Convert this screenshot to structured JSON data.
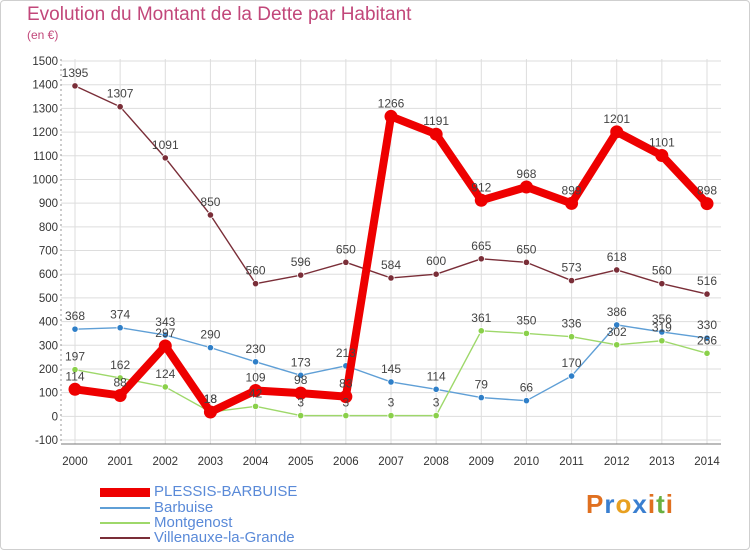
{
  "chart_data": {
    "type": "line",
    "title": "Evolution du Montant de la Dette par Habitant",
    "subtitle": "(en €)",
    "xlabel": "",
    "ylabel": "",
    "x": [
      "2000",
      "2001",
      "2002",
      "2003",
      "2004",
      "2005",
      "2006",
      "2007",
      "2008",
      "2009",
      "2010",
      "2011",
      "2012",
      "2013",
      "2014"
    ],
    "ylim": [
      -100,
      1500
    ],
    "yticks": [
      -100,
      0,
      100,
      200,
      300,
      400,
      500,
      600,
      700,
      800,
      900,
      1000,
      1100,
      1200,
      1300,
      1400,
      1500
    ],
    "grid": true,
    "legend_position": "bottom-left",
    "series": [
      {
        "name": "Villenauxe-la-Grande",
        "color": "#7a2e38",
        "marker": "#7a2e38",
        "values": [
          1395,
          1307,
          1091,
          850,
          560,
          596,
          650,
          584,
          600,
          665,
          650,
          573,
          618,
          560,
          516
        ]
      },
      {
        "name": "Barbuise",
        "color": "#5f9fd6",
        "marker": "#2f7fc8",
        "values": [
          368,
          374,
          343,
          290,
          230,
          173,
          213,
          145,
          114,
          79,
          66,
          170,
          386,
          356,
          330
        ]
      },
      {
        "name": "Montgenost",
        "color": "#9ed86a",
        "marker": "#8ad04a",
        "values": [
          197,
          162,
          124,
          18,
          42,
          3,
          3,
          3,
          3,
          361,
          350,
          336,
          302,
          319,
          266
        ]
      },
      {
        "name": "PLESSIS-BARBUISE",
        "color": "#ee0000",
        "marker": "#ee0000",
        "values": [
          114,
          88,
          297,
          18,
          109,
          98,
          83,
          1266,
          1191,
          912,
          968,
          899,
          1201,
          1101,
          898
        ]
      }
    ],
    "data_labels": [
      {
        "series": 0,
        "index": 0,
        "text": "1395"
      },
      {
        "series": 0,
        "index": 1,
        "text": "1307"
      },
      {
        "series": 0,
        "index": 2,
        "text": "1091"
      },
      {
        "series": 0,
        "index": 3,
        "text": "850"
      },
      {
        "series": 0,
        "index": 4,
        "text": "560"
      },
      {
        "series": 0,
        "index": 5,
        "text": "596"
      },
      {
        "series": 0,
        "index": 6,
        "text": "650"
      },
      {
        "series": 0,
        "index": 7,
        "text": "584"
      },
      {
        "series": 0,
        "index": 8,
        "text": "600"
      },
      {
        "series": 0,
        "index": 9,
        "text": "665"
      },
      {
        "series": 0,
        "index": 10,
        "text": "650"
      },
      {
        "series": 0,
        "index": 11,
        "text": "573"
      },
      {
        "series": 0,
        "index": 12,
        "text": "618"
      },
      {
        "series": 0,
        "index": 13,
        "text": "560"
      },
      {
        "series": 0,
        "index": 14,
        "text": "516"
      },
      {
        "series": 1,
        "index": 0,
        "text": "368"
      },
      {
        "series": 1,
        "index": 1,
        "text": "374"
      },
      {
        "series": 1,
        "index": 2,
        "text": "343"
      },
      {
        "series": 1,
        "index": 3,
        "text": "290"
      },
      {
        "series": 1,
        "index": 4,
        "text": "230"
      },
      {
        "series": 1,
        "index": 5,
        "text": "173"
      },
      {
        "series": 1,
        "index": 6,
        "text": "213"
      },
      {
        "series": 1,
        "index": 7,
        "text": "145"
      },
      {
        "series": 1,
        "index": 8,
        "text": "114"
      },
      {
        "series": 1,
        "index": 9,
        "text": "79"
      },
      {
        "series": 1,
        "index": 10,
        "text": "66"
      },
      {
        "series": 1,
        "index": 11,
        "text": "170"
      },
      {
        "series": 1,
        "index": 12,
        "text": "386"
      },
      {
        "series": 1,
        "index": 13,
        "text": "356"
      },
      {
        "series": 1,
        "index": 14,
        "text": "330"
      },
      {
        "series": 2,
        "index": 0,
        "text": "197"
      },
      {
        "series": 2,
        "index": 1,
        "text": "162"
      },
      {
        "series": 2,
        "index": 2,
        "text": "124"
      },
      {
        "series": 2,
        "index": 3,
        "text": "18"
      },
      {
        "series": 2,
        "index": 4,
        "text": "42"
      },
      {
        "series": 2,
        "index": 5,
        "text": "3"
      },
      {
        "series": 2,
        "index": 6,
        "text": "3"
      },
      {
        "series": 2,
        "index": 7,
        "text": "3"
      },
      {
        "series": 2,
        "index": 8,
        "text": "3"
      },
      {
        "series": 2,
        "index": 9,
        "text": "361"
      },
      {
        "series": 2,
        "index": 10,
        "text": "350"
      },
      {
        "series": 2,
        "index": 11,
        "text": "336"
      },
      {
        "series": 2,
        "index": 12,
        "text": "302"
      },
      {
        "series": 2,
        "index": 13,
        "text": "319"
      },
      {
        "series": 2,
        "index": 14,
        "text": "266"
      },
      {
        "series": 3,
        "index": 0,
        "text": "114"
      },
      {
        "series": 3,
        "index": 1,
        "text": "88"
      },
      {
        "series": 3,
        "index": 2,
        "text": "297"
      },
      {
        "series": 3,
        "index": 3,
        "text": "18"
      },
      {
        "series": 3,
        "index": 4,
        "text": "109"
      },
      {
        "series": 3,
        "index": 5,
        "text": "98"
      },
      {
        "series": 3,
        "index": 6,
        "text": "83"
      },
      {
        "series": 3,
        "index": 7,
        "text": "1266"
      },
      {
        "series": 3,
        "index": 8,
        "text": "1191"
      },
      {
        "series": 3,
        "index": 9,
        "text": "912"
      },
      {
        "series": 3,
        "index": 10,
        "text": "968"
      },
      {
        "series": 3,
        "index": 11,
        "text": "899"
      },
      {
        "series": 3,
        "index": 12,
        "text": "1201"
      },
      {
        "series": 3,
        "index": 13,
        "text": "1101"
      },
      {
        "series": 3,
        "index": 14,
        "text": "898"
      }
    ]
  },
  "legend": [
    {
      "label": "PLESSIS-BARBUISE",
      "color": "#ee0000"
    },
    {
      "label": "Barbuise",
      "color": "#5f9fd6"
    },
    {
      "label": "Montgenost",
      "color": "#9ed86a"
    },
    {
      "label": "Villenauxe-la-Grande",
      "color": "#7a2e38"
    }
  ],
  "logo": {
    "text": "Proxiti",
    "colors": [
      "#e07020",
      "#3a7fd0",
      "#e8a020",
      "#3a7fd0",
      "#e07020",
      "#6ab040",
      "#e07020"
    ]
  }
}
